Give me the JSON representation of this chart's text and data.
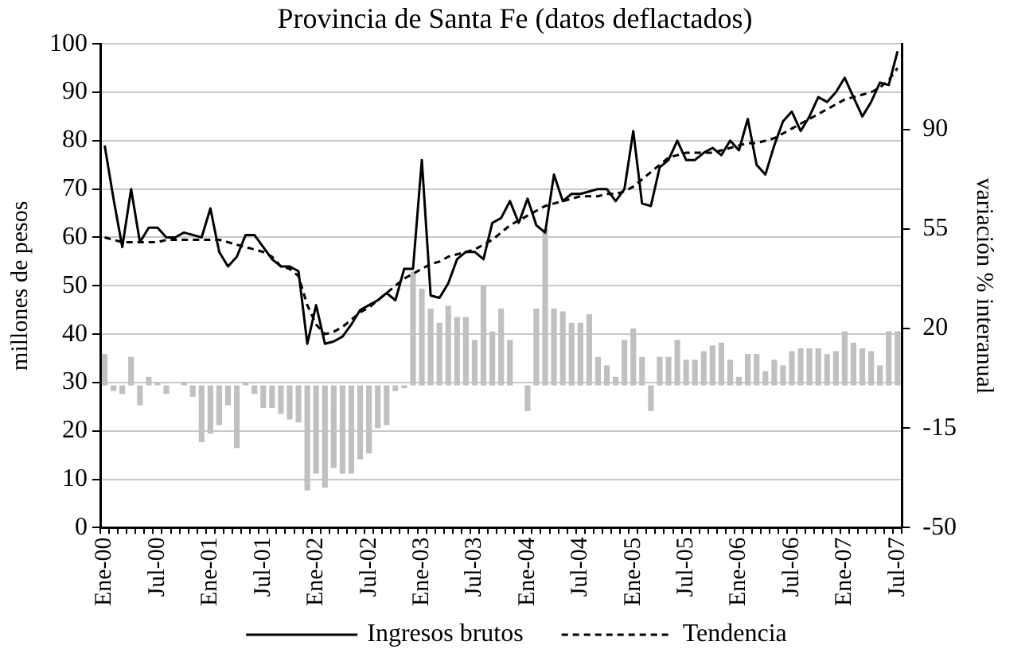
{
  "chart_data": {
    "type": "bar",
    "title": "Provincia de Santa Fe (datos deflactados)",
    "ylabel": "millones de pesos",
    "y2label": "variación % interanual",
    "categories": [
      "Ene-00",
      null,
      null,
      null,
      null,
      null,
      "Jul-00",
      null,
      null,
      null,
      null,
      null,
      "Ene-01",
      null,
      null,
      null,
      null,
      null,
      "Jul-01",
      null,
      null,
      null,
      null,
      null,
      "Ene-02",
      null,
      null,
      null,
      null,
      null,
      "Jul-02",
      null,
      null,
      null,
      null,
      null,
      "Ene-03",
      null,
      null,
      null,
      null,
      null,
      "Jul-03",
      null,
      null,
      null,
      null,
      null,
      "Ene-04",
      null,
      null,
      null,
      null,
      null,
      "Jul-04",
      null,
      null,
      null,
      null,
      null,
      "Ene-05",
      null,
      null,
      null,
      null,
      null,
      "Jul-05",
      null,
      null,
      null,
      null,
      null,
      "Ene-06",
      null,
      null,
      null,
      null,
      null,
      "Jul-06",
      null,
      null,
      null,
      null,
      null,
      "Ene-07",
      null,
      null,
      null,
      null,
      null,
      "Jul-07"
    ],
    "series": [
      {
        "axis": "y2",
        "color": "#c0c0c0",
        "values": [
          11,
          -2,
          -3,
          10,
          -7,
          3,
          1,
          -3,
          0,
          1,
          -4,
          -20,
          -17,
          -14,
          -7,
          -22,
          1,
          -3,
          -8,
          -8,
          -10,
          -12,
          -13,
          -37,
          -31,
          -36,
          -29,
          -31,
          -31,
          -26,
          -24,
          -15,
          -14,
          -2,
          -1,
          40,
          34,
          27,
          22,
          28,
          24,
          24,
          16,
          35,
          19,
          27,
          16,
          0,
          -9,
          27,
          55,
          27,
          26,
          22,
          22,
          25,
          10,
          7,
          3,
          16,
          20,
          10,
          -9,
          10,
          10,
          16,
          9,
          9,
          12,
          14,
          15,
          9,
          3,
          11,
          11,
          5,
          9,
          7,
          12,
          13,
          13,
          13,
          11,
          12,
          19,
          15,
          13,
          12,
          7,
          19,
          19
        ]
      },
      {
        "name": "Ingresos brutos",
        "type": "line",
        "color": "#000000",
        "line_style": "solid",
        "values": [
          79,
          68,
          58,
          70,
          59,
          62,
          62,
          60,
          60,
          61,
          60.5,
          60,
          66,
          57,
          54,
          56,
          60.5,
          60.5,
          58,
          55.5,
          54,
          54,
          53,
          38,
          46,
          38,
          38.5,
          39.5,
          42,
          45,
          46,
          47,
          48.5,
          47,
          53.5,
          53.5,
          76,
          48,
          47.5,
          50.5,
          55.5,
          57,
          57,
          55.5,
          63,
          64,
          67.5,
          63,
          68,
          62.5,
          61,
          73,
          67.5,
          69,
          69,
          69.5,
          70,
          70,
          67.5,
          70,
          82,
          67,
          66.5,
          74.5,
          76,
          80,
          76,
          76,
          77.5,
          78.5,
          77,
          80,
          78,
          84.5,
          75,
          73,
          79,
          84,
          86,
          82,
          85,
          89,
          88,
          90,
          93,
          89,
          85,
          88,
          92,
          91.5,
          98.5
        ]
      },
      {
        "name": "Tendencia",
        "type": "line",
        "color": "#000000",
        "line_style": "dashed",
        "values": [
          60,
          59.5,
          59,
          59,
          59,
          59,
          59,
          59.5,
          59.5,
          59.5,
          59.5,
          59.5,
          59.5,
          59.5,
          59,
          58.5,
          58,
          57.5,
          57,
          56,
          54,
          53.5,
          52,
          46,
          42,
          40,
          40.5,
          41.5,
          43,
          44.5,
          45.5,
          47,
          48.5,
          50,
          51.5,
          52.5,
          53.5,
          54.5,
          55,
          56,
          56.5,
          57,
          57.5,
          58.5,
          59.5,
          61,
          62.5,
          63.5,
          64.5,
          65.5,
          66.5,
          67,
          67.5,
          68,
          68.5,
          68.5,
          68.5,
          69,
          69,
          69.5,
          70.5,
          72,
          73.5,
          75,
          76.5,
          77,
          77.5,
          77.5,
          77.5,
          77.5,
          78,
          78.5,
          79,
          79.5,
          79.5,
          80,
          80.5,
          81.5,
          82.5,
          83.5,
          84.5,
          85.5,
          86.5,
          87.5,
          88.5,
          89,
          89.5,
          90,
          91,
          92.5,
          95
        ]
      }
    ],
    "ylim": [
      0,
      100
    ],
    "yticks": [
      0,
      10,
      20,
      30,
      40,
      50,
      60,
      70,
      80,
      90,
      100
    ],
    "y2lim": [
      -50,
      120
    ],
    "y2ticks": [
      -50,
      -15,
      20,
      55,
      90
    ],
    "grid": "y",
    "legend": "bottom",
    "marker": "none"
  }
}
